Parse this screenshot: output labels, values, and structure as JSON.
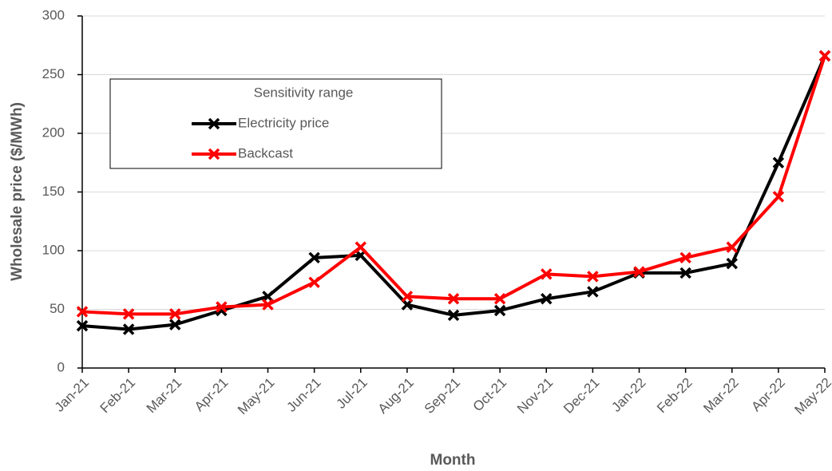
{
  "chart_data": {
    "type": "line",
    "x_label": "Month",
    "y_label": "Wholesale price ($/MWh)",
    "legend_title": "Sensitivity range",
    "categories": [
      "Jan-21",
      "Feb-21",
      "Mar-21",
      "Apr-21",
      "May-21",
      "Jun-21",
      "Jul-21",
      "Aug-21",
      "Sep-21",
      "Oct-21",
      "Nov-21",
      "Dec-21",
      "Jan-22",
      "Feb-22",
      "Mar-22",
      "Apr-22",
      "May-22"
    ],
    "series": [
      {
        "name": "Electricity price",
        "color": "#000000",
        "values": [
          36,
          33,
          37,
          49,
          61,
          94,
          96,
          54,
          45,
          49,
          59,
          65,
          81,
          81,
          89,
          175,
          266
        ]
      },
      {
        "name": "Backcast",
        "color": "#ff0000",
        "values": [
          48,
          46,
          46,
          52,
          54,
          73,
          103,
          61,
          59,
          59,
          80,
          78,
          82,
          94,
          103,
          146,
          266
        ]
      }
    ],
    "ylim": [
      0,
      300
    ],
    "yticks": [
      0,
      50,
      100,
      150,
      200,
      250,
      300
    ],
    "grid": true,
    "legend": "upper left"
  }
}
